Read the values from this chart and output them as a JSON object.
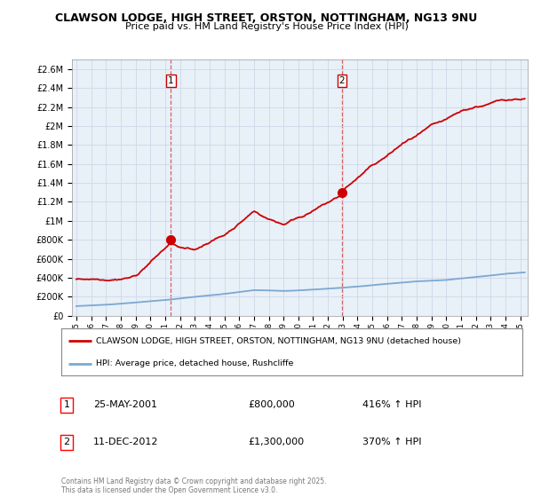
{
  "title_line1": "CLAWSON LODGE, HIGH STREET, ORSTON, NOTTINGHAM, NG13 9NU",
  "title_line2": "Price paid vs. HM Land Registry's House Price Index (HPI)",
  "ylim": [
    0,
    2700000
  ],
  "yticks": [
    0,
    200000,
    400000,
    600000,
    800000,
    1000000,
    1200000,
    1400000,
    1600000,
    1800000,
    2000000,
    2200000,
    2400000,
    2600000
  ],
  "ytick_labels": [
    "£0",
    "£200K",
    "£400K",
    "£600K",
    "£800K",
    "£1M",
    "£1.2M",
    "£1.4M",
    "£1.6M",
    "£1.8M",
    "£2M",
    "£2.2M",
    "£2.4M",
    "£2.6M"
  ],
  "xlim_start": 1994.7,
  "xlim_end": 2025.5,
  "sale1_date": 2001.39,
  "sale1_price": 800000,
  "sale1_label": "1",
  "sale2_date": 2012.95,
  "sale2_price": 1300000,
  "sale2_label": "2",
  "property_color": "#cc0000",
  "hpi_color": "#7aa8d2",
  "grid_color": "#d0d8e8",
  "plot_bg_color": "#e8f0f8",
  "background_color": "#ffffff",
  "legend_label_property": "CLAWSON LODGE, HIGH STREET, ORSTON, NOTTINGHAM, NG13 9NU (detached house)",
  "legend_label_hpi": "HPI: Average price, detached house, Rushcliffe",
  "annotation1_date": "25-MAY-2001",
  "annotation1_price": "£800,000",
  "annotation1_hpi": "416% ↑ HPI",
  "annotation2_date": "11-DEC-2012",
  "annotation2_price": "£1,300,000",
  "annotation2_hpi": "370% ↑ HPI",
  "footer": "Contains HM Land Registry data © Crown copyright and database right 2025.\nThis data is licensed under the Open Government Licence v3.0."
}
